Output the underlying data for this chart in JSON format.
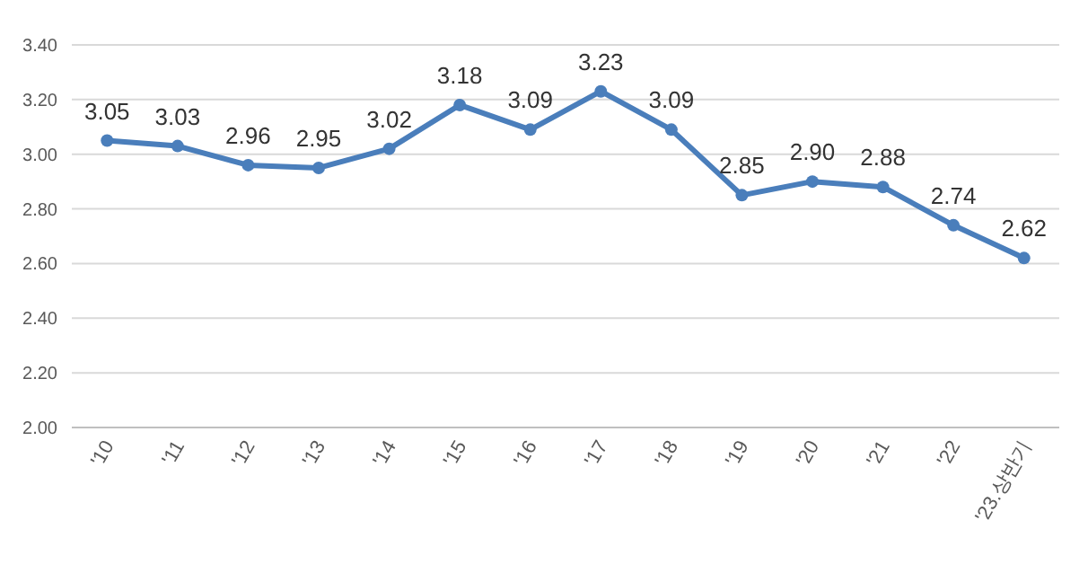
{
  "chart_data": {
    "type": "line",
    "categories": [
      "'10",
      "'11",
      "'12",
      "'13",
      "'14",
      "'15",
      "'16",
      "'17",
      "'18",
      "'19",
      "'20",
      "'21",
      "'22",
      "'23.상반기"
    ],
    "series": [
      {
        "color": "#4a7ebb",
        "values": [
          3.05,
          3.03,
          2.96,
          2.95,
          3.02,
          3.18,
          3.09,
          3.23,
          3.09,
          2.85,
          2.9,
          2.88,
          2.74,
          2.62
        ]
      }
    ],
    "value_labels": [
      "3.05",
      "3.03",
      "2.96",
      "2.95",
      "3.02",
      "3.18",
      "3.09",
      "3.23",
      "3.09",
      "2.85",
      "2.90",
      "2.88",
      "2.74",
      "2.62"
    ],
    "ylim": [
      2.0,
      3.4
    ],
    "yticks": [
      {
        "value": 2.0,
        "label": "2.00"
      },
      {
        "value": 2.2,
        "label": "2.20"
      },
      {
        "value": 2.4,
        "label": "2.40"
      },
      {
        "value": 2.6,
        "label": "2.60"
      },
      {
        "value": 2.8,
        "label": "2.80"
      },
      {
        "value": 3.0,
        "label": "3.00"
      },
      {
        "value": 3.2,
        "label": "3.20"
      },
      {
        "value": 3.4,
        "label": "3.40"
      }
    ],
    "grid": "y",
    "marker": "circle",
    "line_style": "solid"
  }
}
